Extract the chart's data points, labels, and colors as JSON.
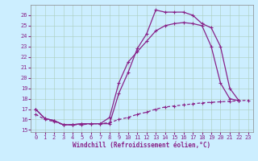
{
  "xlabel": "Windchill (Refroidissement éolien,°C)",
  "background_color": "#cceeff",
  "line_color": "#882288",
  "xlim": [
    -0.5,
    23.5
  ],
  "ylim": [
    14.8,
    27.0
  ],
  "yticks": [
    15,
    16,
    17,
    18,
    19,
    20,
    21,
    22,
    23,
    24,
    25,
    26
  ],
  "xticks": [
    0,
    1,
    2,
    3,
    4,
    5,
    6,
    7,
    8,
    9,
    10,
    11,
    12,
    13,
    14,
    15,
    16,
    17,
    18,
    19,
    20,
    21,
    22,
    23
  ],
  "line1_x": [
    0,
    1,
    2,
    3,
    4,
    5,
    6,
    7,
    8,
    9,
    10,
    11,
    12,
    13,
    14,
    15,
    16,
    17,
    18,
    19,
    20,
    21,
    22
  ],
  "line1_y": [
    17.0,
    16.1,
    15.9,
    15.5,
    15.5,
    15.6,
    15.6,
    15.6,
    15.6,
    18.5,
    20.5,
    22.8,
    24.2,
    26.5,
    26.3,
    26.3,
    26.3,
    26.0,
    25.2,
    24.8,
    23.0,
    19.0,
    17.8
  ],
  "line2_x": [
    0,
    1,
    2,
    3,
    4,
    5,
    6,
    7,
    8,
    9,
    10,
    11,
    12,
    13,
    14,
    15,
    16,
    17,
    18,
    19,
    20,
    21,
    22
  ],
  "line2_y": [
    17.0,
    16.1,
    15.9,
    15.5,
    15.5,
    15.6,
    15.6,
    15.6,
    16.2,
    19.5,
    21.5,
    22.5,
    23.5,
    24.5,
    25.0,
    25.2,
    25.3,
    25.2,
    25.0,
    23.0,
    19.5,
    18.0,
    17.8
  ],
  "line3_x": [
    0,
    1,
    2,
    3,
    4,
    5,
    6,
    7,
    8,
    9,
    10,
    11,
    12,
    13,
    14,
    15,
    16,
    17,
    18,
    19,
    20,
    21,
    22,
    23
  ],
  "line3_y": [
    16.5,
    16.0,
    15.8,
    15.5,
    15.5,
    15.5,
    15.6,
    15.6,
    15.7,
    16.0,
    16.2,
    16.5,
    16.7,
    17.0,
    17.2,
    17.3,
    17.4,
    17.5,
    17.6,
    17.65,
    17.7,
    17.75,
    17.8,
    17.85
  ]
}
